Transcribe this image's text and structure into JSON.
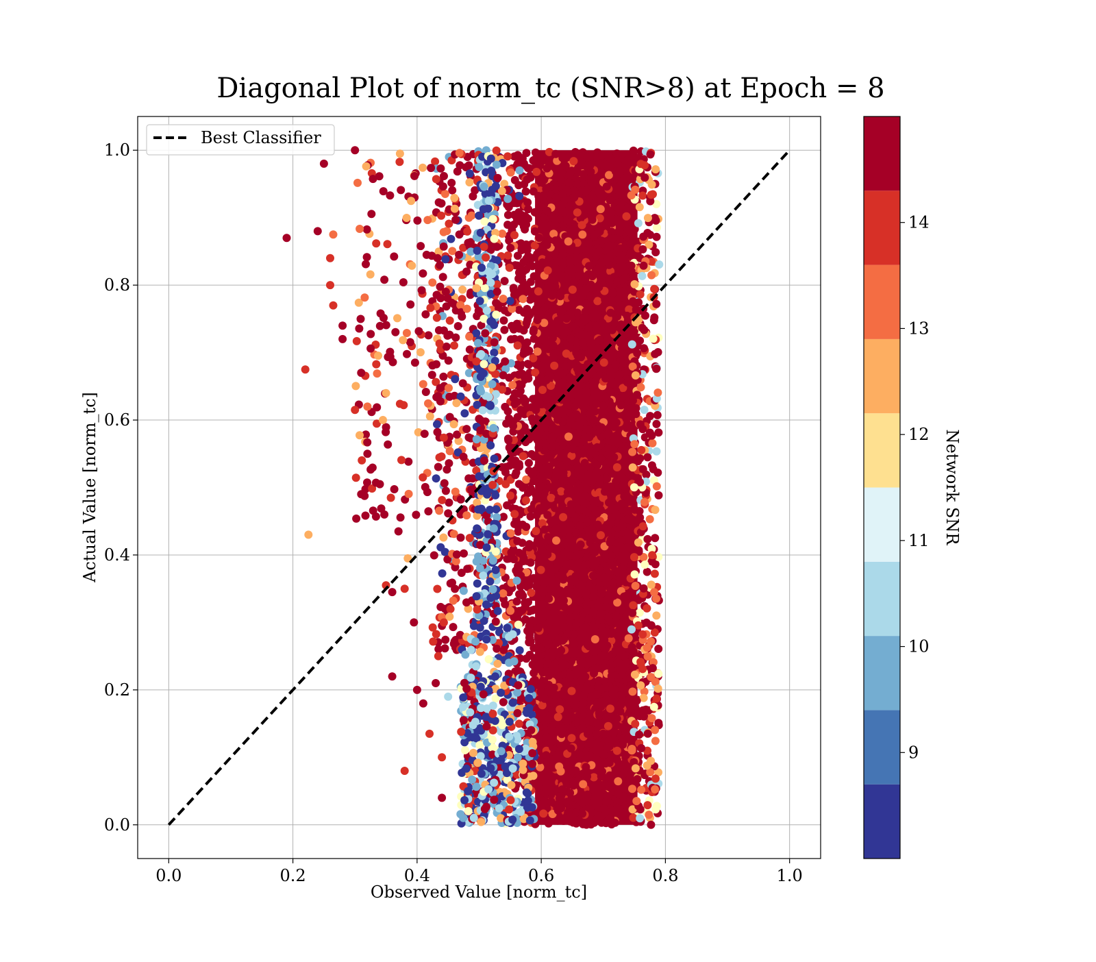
{
  "chart_data": {
    "type": "scatter",
    "title": "Diagonal Plot of norm_tc (SNR>8) at Epoch = 8",
    "xlabel": "Observed Value [norm_tc]",
    "ylabel": "Actual Value [norm_tc]",
    "xlim": [
      -0.05,
      1.05
    ],
    "ylim": [
      -0.05,
      1.05
    ],
    "xticks": [
      "0.0",
      "0.2",
      "0.4",
      "0.6",
      "0.8",
      "1.0"
    ],
    "yticks": [
      "0.0",
      "0.2",
      "0.4",
      "0.6",
      "0.8",
      "1.0"
    ],
    "grid": true,
    "legend": {
      "placement": "top-left",
      "entries": [
        "Best Classifier"
      ]
    },
    "series": [
      {
        "name": "Best Classifier",
        "kind": "line",
        "style": "dashed",
        "color": "#000000",
        "x": [
          0.0,
          1.0
        ],
        "y": [
          0.0,
          1.0
        ]
      }
    ],
    "scatter_colored_by": "Network SNR",
    "colorbar": {
      "label": "Network SNR",
      "range": [
        8,
        15
      ],
      "ticks": [
        "9",
        "10",
        "11",
        "12",
        "13",
        "14"
      ],
      "colors": [
        "#313695",
        "#4575b4",
        "#74add1",
        "#abd9e9",
        "#e0f3f8",
        "#ffffbf",
        "#fee090",
        "#fdae61",
        "#f46d43",
        "#d73027",
        "#a50026"
      ]
    },
    "points": [
      [
        0.19,
        0.87,
        15
      ],
      [
        0.24,
        0.88,
        15
      ],
      [
        0.25,
        0.98,
        15
      ],
      [
        0.3,
        1.0,
        15
      ],
      [
        0.265,
        0.875,
        13.5
      ],
      [
        0.26,
        0.84,
        14
      ],
      [
        0.26,
        0.8,
        14
      ],
      [
        0.265,
        0.77,
        14
      ],
      [
        0.28,
        0.74,
        15
      ],
      [
        0.28,
        0.72,
        15
      ],
      [
        0.22,
        0.675,
        14
      ],
      [
        0.225,
        0.43,
        12.5
      ],
      [
        0.31,
        0.67,
        15
      ],
      [
        0.3,
        0.615,
        14
      ],
      [
        0.32,
        0.62,
        13.5
      ],
      [
        0.31,
        0.49,
        15
      ],
      [
        0.32,
        0.55,
        15
      ],
      [
        0.34,
        0.505,
        15
      ],
      [
        0.345,
        0.6,
        12.5
      ],
      [
        0.35,
        0.64,
        12.5
      ],
      [
        0.35,
        0.355,
        14
      ],
      [
        0.36,
        0.345,
        15
      ],
      [
        0.36,
        0.22,
        15
      ],
      [
        0.38,
        0.08,
        14
      ],
      [
        0.37,
        0.435,
        15
      ],
      [
        0.38,
        0.35,
        14
      ],
      [
        0.385,
        0.395,
        12.5
      ],
      [
        0.395,
        0.3,
        15
      ],
      [
        0.4,
        0.2,
        15
      ],
      [
        0.41,
        0.18,
        15
      ],
      [
        0.42,
        0.135,
        14
      ],
      [
        0.44,
        0.1,
        14
      ],
      [
        0.44,
        0.04,
        15
      ],
      [
        0.43,
        0.21,
        15
      ],
      [
        0.45,
        0.19,
        10
      ]
    ]
  }
}
